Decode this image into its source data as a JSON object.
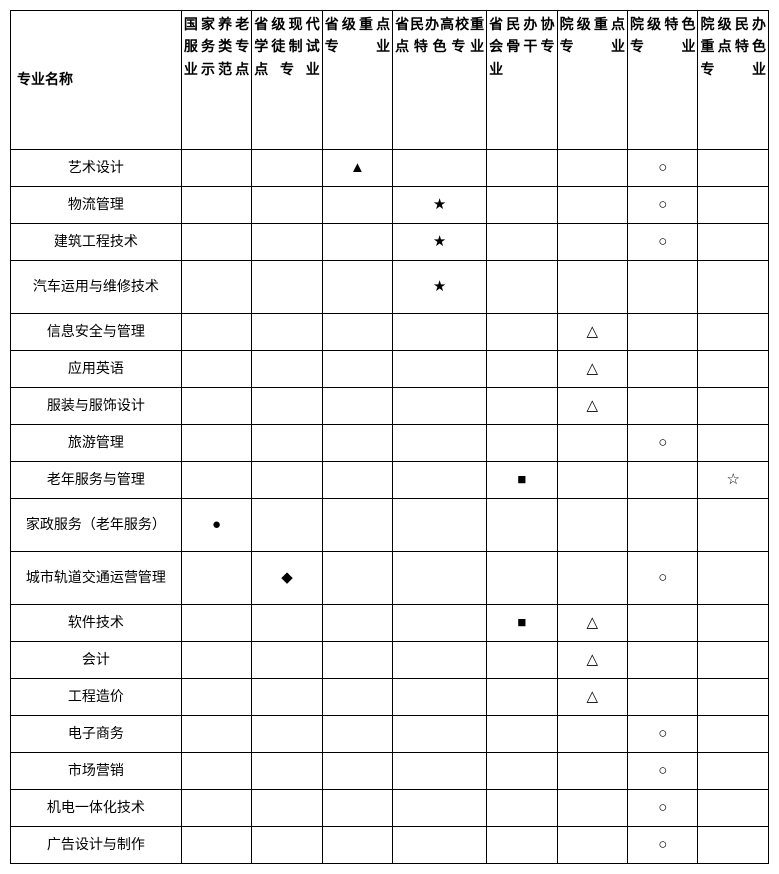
{
  "columns": [
    "专业名称",
    "国家养老服务类专业示范点",
    "省级现代学徒制试点专业",
    "省级重点专业",
    "省民办高校重点特色专业",
    "省民办协会骨干专业",
    "院级重点专业",
    "院级特色专业",
    "院级民办重点特色专业"
  ],
  "rows": [
    {
      "name": "艺术设计",
      "c": [
        "",
        "",
        "▲",
        "",
        "",
        "",
        "○",
        ""
      ]
    },
    {
      "name": "物流管理",
      "c": [
        "",
        "",
        "",
        "★",
        "",
        "",
        "○",
        ""
      ]
    },
    {
      "name": "建筑工程技术",
      "c": [
        "",
        "",
        "",
        "★",
        "",
        "",
        "○",
        ""
      ]
    },
    {
      "name": "汽车运用与维修技术",
      "c": [
        "",
        "",
        "",
        "★",
        "",
        "",
        "",
        ""
      ],
      "tall": true
    },
    {
      "name": "信息安全与管理",
      "c": [
        "",
        "",
        "",
        "",
        "",
        "△",
        "",
        ""
      ]
    },
    {
      "name": "应用英语",
      "c": [
        "",
        "",
        "",
        "",
        "",
        "△",
        "",
        ""
      ]
    },
    {
      "name": "服装与服饰设计",
      "c": [
        "",
        "",
        "",
        "",
        "",
        "△",
        "",
        ""
      ]
    },
    {
      "name": "旅游管理",
      "c": [
        "",
        "",
        "",
        "",
        "",
        "",
        "○",
        ""
      ]
    },
    {
      "name": "老年服务与管理",
      "c": [
        "",
        "",
        "",
        "",
        "■",
        "",
        "",
        "☆"
      ]
    },
    {
      "name": "家政服务（老年服务）",
      "c": [
        "●",
        "",
        "",
        "",
        "",
        "",
        "",
        ""
      ],
      "tall": true
    },
    {
      "name": "城市轨道交通运营管理",
      "c": [
        "",
        "◆",
        "",
        "",
        "",
        "",
        "○",
        ""
      ],
      "tall": true
    },
    {
      "name": "软件技术",
      "c": [
        "",
        "",
        "",
        "",
        "■",
        "△",
        "",
        ""
      ]
    },
    {
      "name": "会计",
      "c": [
        "",
        "",
        "",
        "",
        "",
        "△",
        "",
        ""
      ]
    },
    {
      "name": "工程造价",
      "c": [
        "",
        "",
        "",
        "",
        "",
        "△",
        "",
        ""
      ]
    },
    {
      "name": "电子商务",
      "c": [
        "",
        "",
        "",
        "",
        "",
        "",
        "○",
        ""
      ]
    },
    {
      "name": "市场营销",
      "c": [
        "",
        "",
        "",
        "",
        "",
        "",
        "○",
        ""
      ]
    },
    {
      "name": "机电一体化技术",
      "c": [
        "",
        "",
        "",
        "",
        "",
        "",
        "○",
        ""
      ]
    },
    {
      "name": "广告设计与制作",
      "c": [
        "",
        "",
        "",
        "",
        "",
        "",
        "○",
        ""
      ]
    }
  ]
}
